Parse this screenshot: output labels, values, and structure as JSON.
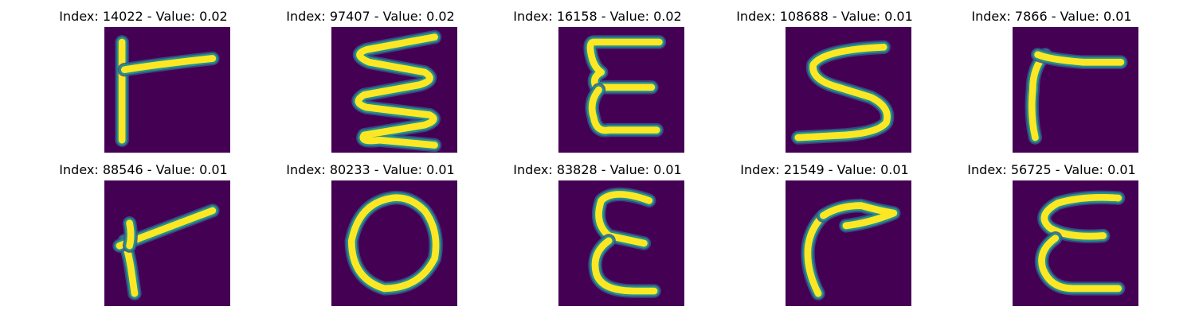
{
  "colors": {
    "background": "#440154",
    "stroke_core": "#fde725",
    "stroke_mid": "#21918c",
    "stroke_edge": "#3b528b"
  },
  "panels": [
    {
      "title": "Index: 14022 - Value: 0.02",
      "glyph": "r-short"
    },
    {
      "title": "Index: 97407 - Value: 0.02",
      "glyph": "sigma-zigzag"
    },
    {
      "title": "Index: 16158 - Value: 0.02",
      "glyph": "bold-e"
    },
    {
      "title": "Index: 108688 - Value: 0.01",
      "glyph": "s"
    },
    {
      "title": "Index: 7866 - Value: 0.01",
      "glyph": "r-hook"
    },
    {
      "title": "Index: 88546 - Value: 0.01",
      "glyph": "r-slant"
    },
    {
      "title": "Index: 80233 - Value: 0.01",
      "glyph": "o"
    },
    {
      "title": "Index: 83828 - Value: 0.01",
      "glyph": "epsilon"
    },
    {
      "title": "Index: 21549 - Value: 0.01",
      "glyph": "r-curve"
    },
    {
      "title": "Index: 56725 - Value: 0.01",
      "glyph": "epsilon-wide"
    }
  ]
}
